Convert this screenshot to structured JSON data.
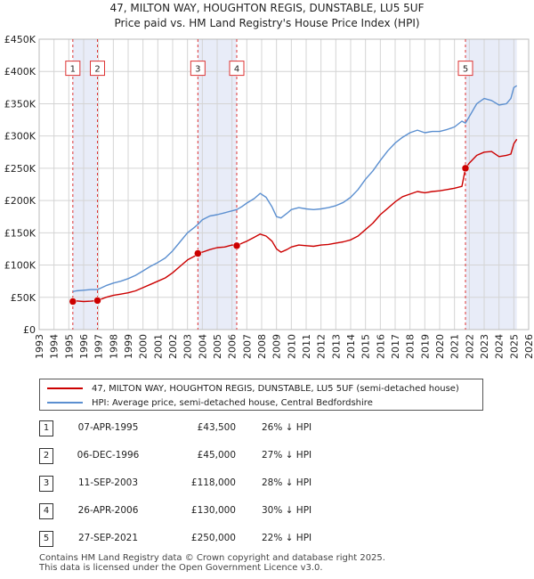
{
  "title_line1": "47, MILTON WAY, HOUGHTON REGIS, DUNSTABLE, LU5 5UF",
  "title_line2": "Price paid vs. HM Land Registry's House Price Index (HPI)",
  "chart_data": {
    "type": "line",
    "xlim": [
      1993,
      2026
    ],
    "ylim": [
      0,
      450000
    ],
    "x_ticks": [
      1993,
      1994,
      1995,
      1996,
      1997,
      1998,
      1999,
      2000,
      2001,
      2002,
      2003,
      2004,
      2005,
      2006,
      2007,
      2008,
      2009,
      2010,
      2011,
      2012,
      2013,
      2014,
      2015,
      2016,
      2017,
      2018,
      2019,
      2020,
      2021,
      2022,
      2023,
      2024,
      2025,
      2026
    ],
    "y_ticks": [
      {
        "value": 0,
        "label": "£0"
      },
      {
        "value": 50000,
        "label": "£50K"
      },
      {
        "value": 100000,
        "label": "£100K"
      },
      {
        "value": 150000,
        "label": "£150K"
      },
      {
        "value": 200000,
        "label": "£200K"
      },
      {
        "value": 250000,
        "label": "£250K"
      },
      {
        "value": 300000,
        "label": "£300K"
      },
      {
        "value": 350000,
        "label": "£350K"
      },
      {
        "value": 400000,
        "label": "£400K"
      },
      {
        "value": 450000,
        "label": "£450K"
      }
    ],
    "grid": true,
    "shaded_ranges": [
      [
        1995.27,
        1996.93
      ],
      [
        2003.7,
        2006.32
      ],
      [
        2021.74,
        2025.2
      ]
    ],
    "series": [
      {
        "name": "47, MILTON WAY, HOUGHTON REGIS, DUNSTABLE, LU5 5UF (semi-detached house)",
        "color": "#cc0000",
        "points": [
          [
            1995.27,
            43500
          ],
          [
            1995.5,
            44500
          ],
          [
            1996.0,
            43500
          ],
          [
            1996.5,
            44000
          ],
          [
            1996.93,
            45000
          ],
          [
            1997.5,
            50000
          ],
          [
            1998.0,
            53000
          ],
          [
            1998.5,
            55000
          ],
          [
            1999.0,
            57000
          ],
          [
            1999.5,
            60000
          ],
          [
            2000.0,
            65000
          ],
          [
            2000.5,
            70000
          ],
          [
            2001.0,
            75000
          ],
          [
            2001.5,
            80000
          ],
          [
            2002.0,
            88000
          ],
          [
            2002.5,
            98000
          ],
          [
            2003.0,
            108000
          ],
          [
            2003.5,
            114000
          ],
          [
            2003.7,
            118000
          ],
          [
            2004.0,
            120000
          ],
          [
            2004.5,
            124000
          ],
          [
            2005.0,
            127000
          ],
          [
            2005.5,
            128000
          ],
          [
            2006.0,
            131000
          ],
          [
            2006.32,
            130000
          ],
          [
            2006.7,
            134000
          ],
          [
            2007.0,
            137000
          ],
          [
            2007.5,
            143000
          ],
          [
            2007.9,
            148000
          ],
          [
            2008.3,
            145000
          ],
          [
            2008.7,
            137000
          ],
          [
            2009.0,
            125000
          ],
          [
            2009.3,
            120000
          ],
          [
            2009.7,
            124000
          ],
          [
            2010.0,
            128000
          ],
          [
            2010.5,
            131000
          ],
          [
            2011.0,
            130000
          ],
          [
            2011.5,
            129000
          ],
          [
            2012.0,
            131000
          ],
          [
            2012.5,
            132000
          ],
          [
            2013.0,
            134000
          ],
          [
            2013.5,
            136000
          ],
          [
            2014.0,
            139000
          ],
          [
            2014.5,
            145000
          ],
          [
            2015.0,
            155000
          ],
          [
            2015.5,
            165000
          ],
          [
            2016.0,
            178000
          ],
          [
            2016.5,
            188000
          ],
          [
            2017.0,
            198000
          ],
          [
            2017.5,
            206000
          ],
          [
            2018.0,
            210000
          ],
          [
            2018.5,
            214000
          ],
          [
            2019.0,
            212000
          ],
          [
            2019.5,
            214000
          ],
          [
            2020.0,
            215000
          ],
          [
            2020.5,
            217000
          ],
          [
            2021.0,
            219000
          ],
          [
            2021.5,
            222000
          ],
          [
            2021.74,
            250000
          ],
          [
            2022.0,
            258000
          ],
          [
            2022.5,
            270000
          ],
          [
            2023.0,
            275000
          ],
          [
            2023.5,
            276000
          ],
          [
            2024.0,
            268000
          ],
          [
            2024.5,
            270000
          ],
          [
            2024.8,
            272000
          ],
          [
            2025.0,
            288000
          ],
          [
            2025.2,
            295000
          ]
        ]
      },
      {
        "name": "HPI: Average price, semi-detached house, Central Bedfordshire",
        "color": "#5b8fd0",
        "points": [
          [
            1995.27,
            59000
          ],
          [
            1995.5,
            60000
          ],
          [
            1996.0,
            61000
          ],
          [
            1996.5,
            62000
          ],
          [
            1996.93,
            62000
          ],
          [
            1997.5,
            68000
          ],
          [
            1998.0,
            72000
          ],
          [
            1998.5,
            75000
          ],
          [
            1999.0,
            79000
          ],
          [
            1999.5,
            84000
          ],
          [
            2000.0,
            91000
          ],
          [
            2000.5,
            98000
          ],
          [
            2001.0,
            104000
          ],
          [
            2001.5,
            111000
          ],
          [
            2002.0,
            122000
          ],
          [
            2002.5,
            136000
          ],
          [
            2003.0,
            150000
          ],
          [
            2003.5,
            159000
          ],
          [
            2003.7,
            163000
          ],
          [
            2004.0,
            170000
          ],
          [
            2004.5,
            176000
          ],
          [
            2005.0,
            178000
          ],
          [
            2005.5,
            181000
          ],
          [
            2006.0,
            184000
          ],
          [
            2006.32,
            186000
          ],
          [
            2006.7,
            191000
          ],
          [
            2007.0,
            196000
          ],
          [
            2007.5,
            203000
          ],
          [
            2007.9,
            211000
          ],
          [
            2008.3,
            205000
          ],
          [
            2008.7,
            190000
          ],
          [
            2009.0,
            175000
          ],
          [
            2009.3,
            173000
          ],
          [
            2009.7,
            180000
          ],
          [
            2010.0,
            186000
          ],
          [
            2010.5,
            189000
          ],
          [
            2011.0,
            187000
          ],
          [
            2011.5,
            186000
          ],
          [
            2012.0,
            187000
          ],
          [
            2012.5,
            189000
          ],
          [
            2013.0,
            192000
          ],
          [
            2013.5,
            197000
          ],
          [
            2014.0,
            205000
          ],
          [
            2014.5,
            217000
          ],
          [
            2015.0,
            233000
          ],
          [
            2015.5,
            246000
          ],
          [
            2016.0,
            262000
          ],
          [
            2016.5,
            277000
          ],
          [
            2017.0,
            289000
          ],
          [
            2017.5,
            298000
          ],
          [
            2018.0,
            305000
          ],
          [
            2018.5,
            309000
          ],
          [
            2019.0,
            305000
          ],
          [
            2019.5,
            307000
          ],
          [
            2020.0,
            307000
          ],
          [
            2020.5,
            310000
          ],
          [
            2021.0,
            314000
          ],
          [
            2021.5,
            323000
          ],
          [
            2021.74,
            320000
          ],
          [
            2022.0,
            330000
          ],
          [
            2022.5,
            350000
          ],
          [
            2023.0,
            358000
          ],
          [
            2023.5,
            355000
          ],
          [
            2024.0,
            348000
          ],
          [
            2024.5,
            350000
          ],
          [
            2024.8,
            358000
          ],
          [
            2025.0,
            375000
          ],
          [
            2025.2,
            378000
          ]
        ]
      }
    ],
    "sales": [
      {
        "num": "1",
        "x": 1995.27,
        "price": 43500
      },
      {
        "num": "2",
        "x": 1996.93,
        "price": 45000
      },
      {
        "num": "3",
        "x": 2003.7,
        "price": 118000
      },
      {
        "num": "4",
        "x": 2006.32,
        "price": 130000
      },
      {
        "num": "5",
        "x": 2021.74,
        "price": 250000
      }
    ],
    "marker_label_value": 405000
  },
  "legend": {
    "items": [
      {
        "label": "47, MILTON WAY, HOUGHTON REGIS, DUNSTABLE, LU5 5UF (semi-detached house)",
        "color": "#cc0000"
      },
      {
        "label": "HPI: Average price, semi-detached house, Central Bedfordshire",
        "color": "#5b8fd0"
      }
    ]
  },
  "transactions": [
    {
      "num": "1",
      "date": "07-APR-1995",
      "price": "£43,500",
      "hpi": "26% ↓ HPI"
    },
    {
      "num": "2",
      "date": "06-DEC-1996",
      "price": "£45,000",
      "hpi": "27% ↓ HPI"
    },
    {
      "num": "3",
      "date": "11-SEP-2003",
      "price": "£118,000",
      "hpi": "28% ↓ HPI"
    },
    {
      "num": "4",
      "date": "26-APR-2006",
      "price": "£130,000",
      "hpi": "30% ↓ HPI"
    },
    {
      "num": "5",
      "date": "27-SEP-2021",
      "price": "£250,000",
      "hpi": "22% ↓ HPI"
    }
  ],
  "footer": {
    "line1": "Contains HM Land Registry data © Crown copyright and database right 2025.",
    "line2": "This data is licensed under the Open Government Licence v3.0."
  }
}
